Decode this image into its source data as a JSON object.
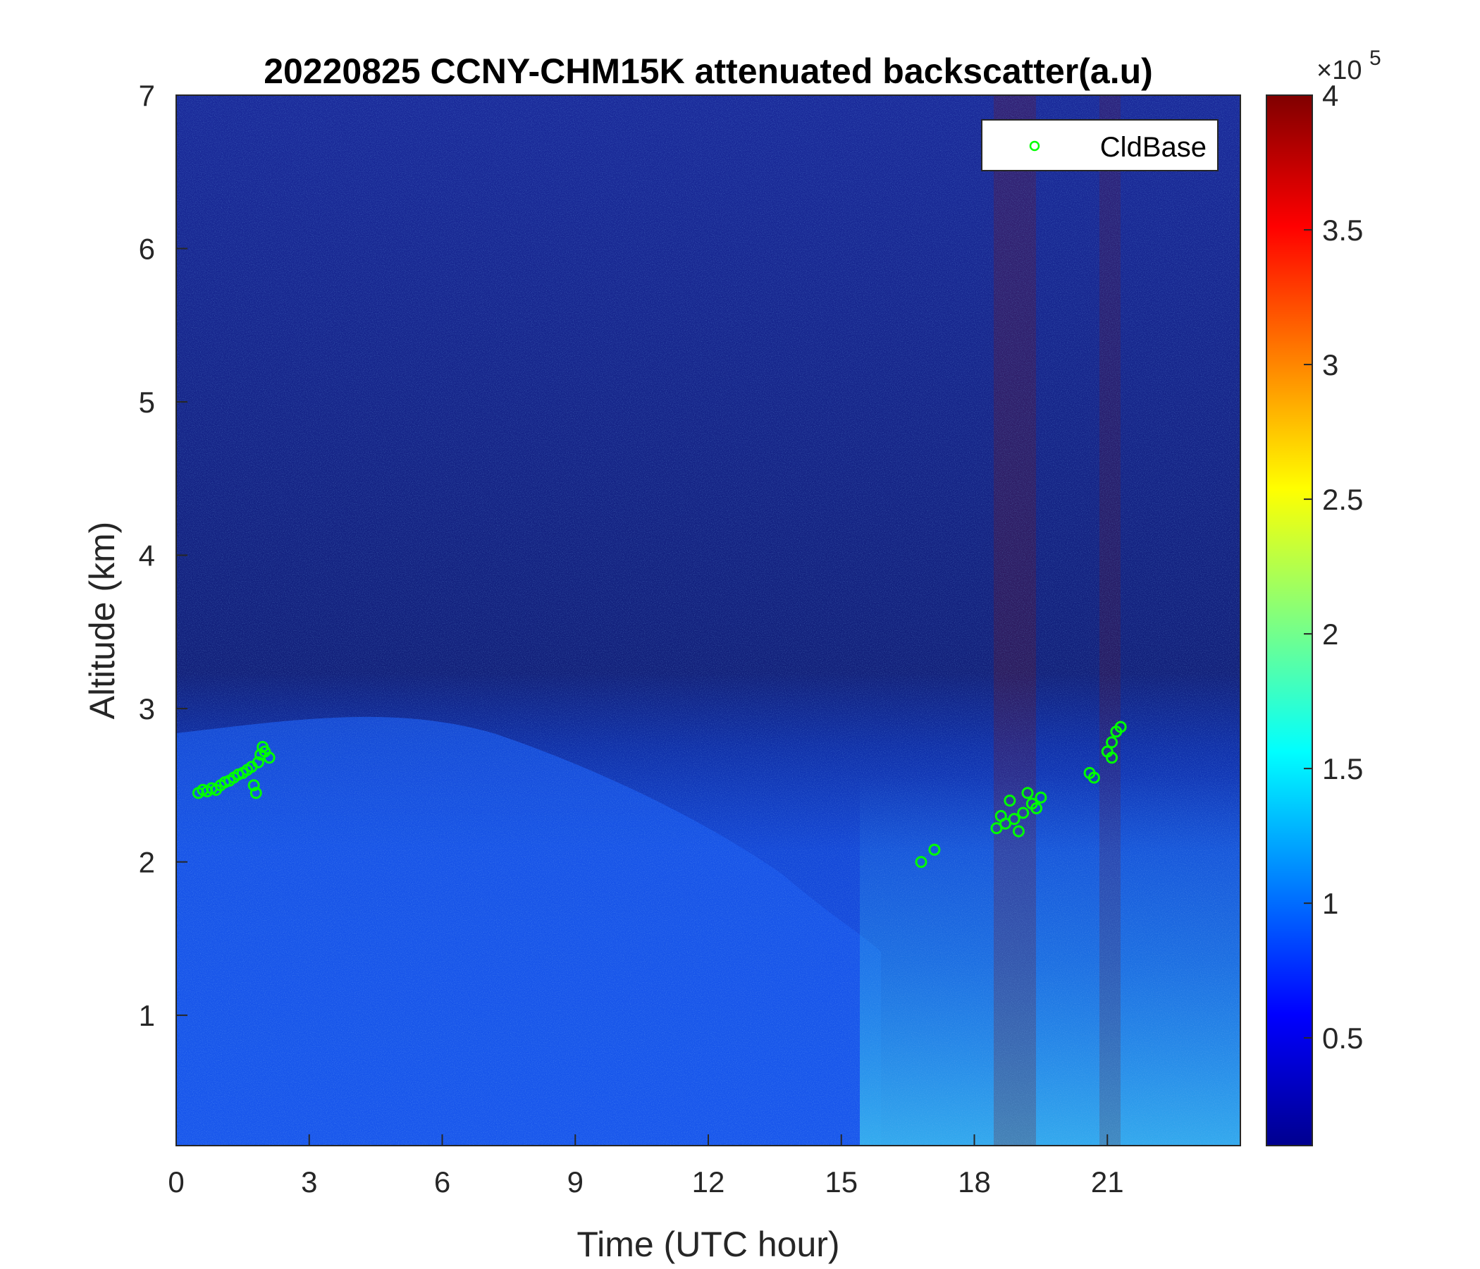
{
  "chart_data": {
    "type": "heatmap",
    "title": "20220825 CCNY-CHM15K attenuated backscatter(a.u)",
    "xlabel": "Time (UTC hour)",
    "ylabel": "Altitude (km)",
    "xlim": [
      0,
      24
    ],
    "ylim": [
      0.15,
      7
    ],
    "xticks": [
      0,
      3,
      6,
      9,
      12,
      15,
      18,
      21
    ],
    "xtick_labels": [
      "0",
      "3",
      "6",
      "9",
      "12",
      "15",
      "18",
      "21"
    ],
    "yticks": [
      1,
      2,
      3,
      4,
      5,
      6,
      7
    ],
    "ytick_labels": [
      "1",
      "2",
      "3",
      "4",
      "5",
      "6",
      "7"
    ],
    "colormap": "jet",
    "colorbar": {
      "range": [
        0.1,
        4
      ],
      "ticks": [
        0.5,
        1,
        1.5,
        2,
        2.5,
        3,
        3.5,
        4
      ],
      "tick_labels": [
        "0.5",
        "1",
        "1.5",
        "2",
        "2.5",
        "3",
        "3.5",
        "4"
      ],
      "multiplier_base": "×10",
      "multiplier_exp": "5"
    },
    "legend": {
      "placement": "top-right",
      "entries": [
        "CldBase"
      ]
    },
    "series": [
      {
        "name": "CldBase",
        "marker": "circle-open",
        "color": "#00ff00",
        "points": [
          [
            0.5,
            2.45
          ],
          [
            0.6,
            2.47
          ],
          [
            0.7,
            2.46
          ],
          [
            0.8,
            2.48
          ],
          [
            0.9,
            2.47
          ],
          [
            1.0,
            2.5
          ],
          [
            1.1,
            2.52
          ],
          [
            1.2,
            2.53
          ],
          [
            1.3,
            2.55
          ],
          [
            1.4,
            2.57
          ],
          [
            1.5,
            2.58
          ],
          [
            1.6,
            2.6
          ],
          [
            1.7,
            2.62
          ],
          [
            1.75,
            2.5
          ],
          [
            1.8,
            2.45
          ],
          [
            1.85,
            2.65
          ],
          [
            1.9,
            2.7
          ],
          [
            1.95,
            2.75
          ],
          [
            2.0,
            2.72
          ],
          [
            2.1,
            2.68
          ],
          [
            16.8,
            2.0
          ],
          [
            17.1,
            2.08
          ],
          [
            18.5,
            2.22
          ],
          [
            18.6,
            2.3
          ],
          [
            18.7,
            2.25
          ],
          [
            18.8,
            2.4
          ],
          [
            18.9,
            2.28
          ],
          [
            19.0,
            2.2
          ],
          [
            19.1,
            2.32
          ],
          [
            19.2,
            2.45
          ],
          [
            19.3,
            2.38
          ],
          [
            19.4,
            2.35
          ],
          [
            19.5,
            2.42
          ],
          [
            20.6,
            2.58
          ],
          [
            20.7,
            2.55
          ],
          [
            21.0,
            2.72
          ],
          [
            21.1,
            2.78
          ],
          [
            21.2,
            2.85
          ],
          [
            21.3,
            2.88
          ],
          [
            21.1,
            2.68
          ]
        ]
      }
    ]
  }
}
